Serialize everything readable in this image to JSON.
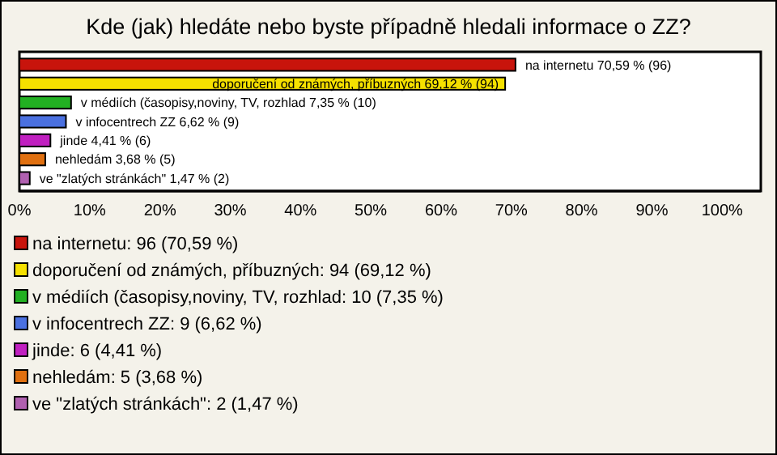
{
  "chart_data": {
    "type": "bar",
    "orientation": "horizontal",
    "stacked": true,
    "title": "Kde (jak) hledáte nebo byste případně hledali informace o ZZ?",
    "categories": [
      null,
      null,
      null,
      null,
      null,
      null,
      null
    ],
    "series": [
      {
        "name": "na internetu: 96 (70,59 %)",
        "color": "#c8140c",
        "values": [
          70.59,
          null,
          null,
          null,
          null,
          null,
          null
        ],
        "value_labels": [
          "na internetu 70,59 % (96)",
          null,
          null,
          null,
          null,
          null,
          null
        ]
      },
      {
        "name": "doporučení od známých, příbuzných: 94 (69,12 %)",
        "color": "#f5e000",
        "values": [
          null,
          69.12,
          null,
          null,
          null,
          null,
          null
        ],
        "value_labels": [
          null,
          "doporučení od známých, příbuzných 69,12 % (94)",
          null,
          null,
          null,
          null,
          null
        ]
      },
      {
        "name": "v médiích (časopisy,noviny, TV, rozhlad: 10 (7,35 %)",
        "color": "#22b022",
        "values": [
          null,
          null,
          7.35,
          null,
          null,
          null,
          null
        ],
        "value_labels": [
          null,
          null,
          "v médiích (časopisy,noviny, TV, rozhlad 7,35 % (10)",
          null,
          null,
          null,
          null
        ]
      },
      {
        "name": "v infocentrech ZZ: 9 (6,62 %)",
        "color": "#4a70e0",
        "values": [
          null,
          null,
          null,
          6.62,
          null,
          null,
          null
        ],
        "value_labels": [
          null,
          null,
          null,
          "v infocentrech ZZ 6,62 % (9)",
          null,
          null,
          null
        ]
      },
      {
        "name": "jinde: 6 (4,41 %)",
        "color": "#c020c0",
        "values": [
          null,
          null,
          null,
          null,
          4.41,
          null,
          null
        ],
        "value_labels": [
          null,
          null,
          null,
          null,
          "jinde 4,41 % (6)",
          null,
          null
        ]
      },
      {
        "name": "nehledám: 5 (3,68 %)",
        "color": "#e07010",
        "values": [
          null,
          null,
          null,
          null,
          null,
          3.68,
          null
        ],
        "value_labels": [
          null,
          null,
          null,
          null,
          null,
          "nehledám 3,68 % (5)",
          null
        ]
      },
      {
        "name": "ve \"zlatých stránkách\": 2 (1,47 %)",
        "color": "#b060b0",
        "values": [
          null,
          null,
          null,
          null,
          null,
          null,
          1.47
        ],
        "value_labels": [
          null,
          null,
          null,
          null,
          null,
          null,
          "ve \"zlatých stránkách\" 1,47 % (2)"
        ]
      }
    ],
    "xlim": [
      0,
      105.5
    ],
    "xticks": [
      {
        "value": 0,
        "label": "0%"
      },
      {
        "value": 10,
        "label": "10%"
      },
      {
        "value": 20,
        "label": "20%"
      },
      {
        "value": 30,
        "label": "30%"
      },
      {
        "value": 40,
        "label": "40%"
      },
      {
        "value": 50,
        "label": "50%"
      },
      {
        "value": 60,
        "label": "60%"
      },
      {
        "value": 70,
        "label": "70%"
      },
      {
        "value": 80,
        "label": "80%"
      },
      {
        "value": 90,
        "label": "90%"
      },
      {
        "value": 100,
        "label": "100%"
      }
    ],
    "grid": false,
    "legend": "bottom"
  }
}
